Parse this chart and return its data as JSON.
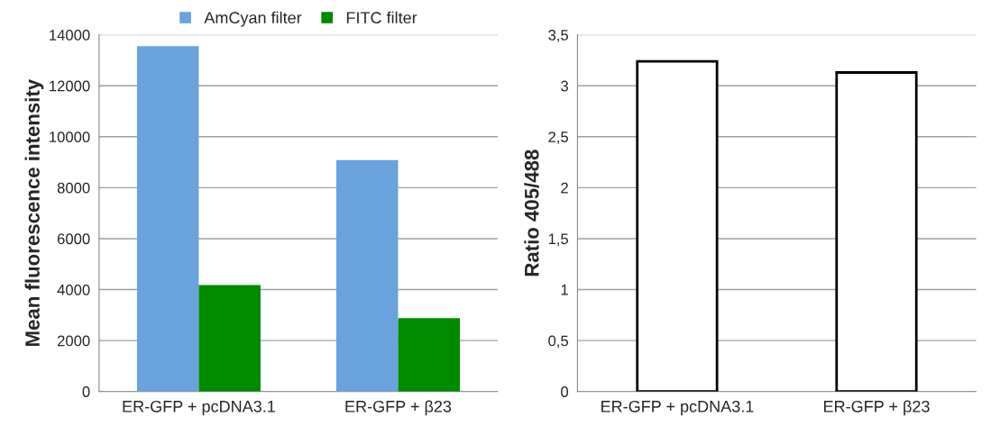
{
  "chart_data": [
    {
      "type": "bar",
      "ylabel": "Mean fluorescence intensity",
      "categories": [
        "ER-GFP + pcDNA3.1",
        "ER-GFP + β23"
      ],
      "series": [
        {
          "name": "AmCyan filter",
          "color": "#6aa2de",
          "values": [
            13550,
            9080
          ]
        },
        {
          "name": "FITC filter",
          "color": "#008a00",
          "values": [
            4180,
            2880
          ]
        }
      ],
      "ylim": [
        0,
        14000
      ],
      "yticks": [
        0,
        2000,
        4000,
        6000,
        8000,
        10000,
        12000,
        14000
      ],
      "grid": "y",
      "legend": "top"
    },
    {
      "type": "bar",
      "ylabel": "Ratio 405/488",
      "categories": [
        "ER-GFP + pcDNA3.1",
        "ER-GFP + β23"
      ],
      "series": [
        {
          "color": "#ffffff",
          "values": [
            3.24,
            3.13
          ]
        }
      ],
      "ylim": [
        0,
        3.5
      ],
      "yticks": [
        0,
        {
          "value": 0.5,
          "label": "0,5"
        },
        1,
        {
          "value": 1.5,
          "label": "1,5"
        },
        2,
        {
          "value": 2.5,
          "label": "2,5"
        },
        3,
        {
          "value": 3.5,
          "label": "3,5"
        }
      ],
      "grid": "y"
    }
  ]
}
